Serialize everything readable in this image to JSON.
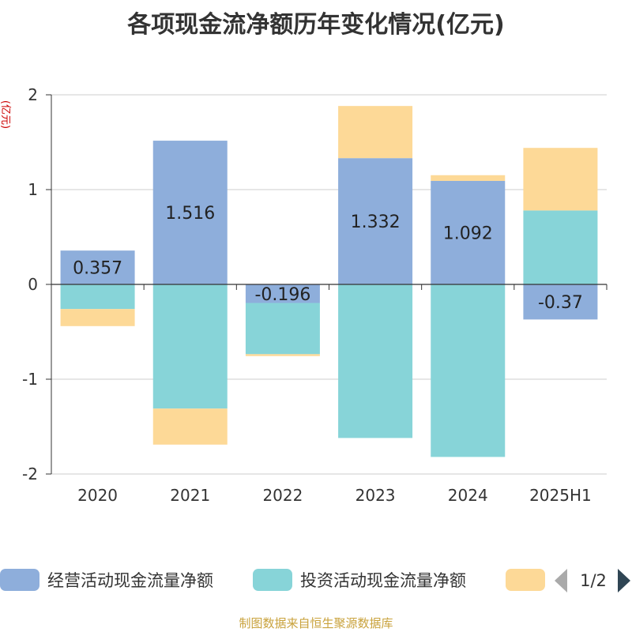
{
  "page": {
    "title": "各项现金流净额历年变化情况(亿元)"
  },
  "legend": {
    "page_indicator": "1/2",
    "prev_icon": "triangle-left-icon",
    "next_icon": "triangle-right-icon"
  },
  "footer": {
    "source": "制图数据来自恒生聚源数据库"
  },
  "chart_data": {
    "type": "bar",
    "stacked": true,
    "title": "各项现金流净额历年变化情况(亿元)",
    "ylabel": "(亿元)",
    "categories": [
      "2020",
      "2021",
      "2022",
      "2023",
      "2024",
      "2025H1"
    ],
    "ylim": [
      -2,
      2
    ],
    "yticks": [
      2,
      1,
      0,
      -1,
      -2
    ],
    "grid": true,
    "legend_position": "bottom",
    "series": [
      {
        "name": "经营活动现金流量净额",
        "color": "#8eaedb",
        "values": [
          0.357,
          1.516,
          -0.196,
          1.332,
          1.092,
          -0.37
        ],
        "show_labels": true
      },
      {
        "name": "投资活动现金流量净额",
        "color": "#87d4d8",
        "values": [
          -0.26,
          -1.31,
          -0.54,
          -1.62,
          -1.82,
          0.78
        ],
        "show_labels": false
      },
      {
        "name": "",
        "color": "#fdd997",
        "values": [
          -0.18,
          -0.38,
          -0.02,
          0.55,
          0.06,
          0.66
        ],
        "show_labels": false
      }
    ]
  }
}
